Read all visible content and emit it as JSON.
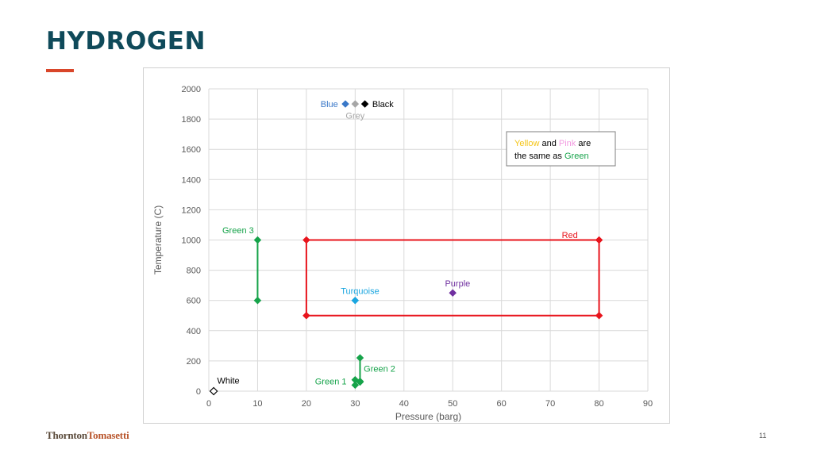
{
  "slide": {
    "title": "HYDROGEN",
    "accent_color": "#d9462a",
    "title_color": "#0f4a5a",
    "footer_logo_part1": "Thornton",
    "footer_logo_part2": "Tomasetti",
    "page_number": "11"
  },
  "chart_data": {
    "type": "scatter",
    "title": "",
    "xlabel": "Pressure (barg)",
    "ylabel": "Temperature (C)",
    "xlim": [
      0,
      90
    ],
    "ylim": [
      0,
      2000
    ],
    "xticks": [
      0,
      10,
      20,
      30,
      40,
      50,
      60,
      70,
      80,
      90
    ],
    "yticks": [
      0,
      200,
      400,
      600,
      800,
      1000,
      1200,
      1400,
      1600,
      1800,
      2000
    ],
    "grid": true,
    "series": [
      {
        "name": "Blue",
        "color": "#3a78c8",
        "marker": "diamond-filled",
        "points": [
          [
            28,
            1900
          ]
        ]
      },
      {
        "name": "Grey",
        "color": "#a6a6a6",
        "marker": "diamond-filled",
        "points": [
          [
            30,
            1900
          ]
        ]
      },
      {
        "name": "Black",
        "color": "#000000",
        "marker": "diamond-filled",
        "points": [
          [
            32,
            1900
          ]
        ]
      },
      {
        "name": "Green 3",
        "color": "#16a34a",
        "marker": "diamond-filled",
        "points": [
          [
            10,
            1000
          ],
          [
            10,
            600
          ]
        ],
        "line": true
      },
      {
        "name": "Red",
        "color": "#e8141c",
        "marker": "diamond-filled",
        "points": [
          [
            20,
            1000
          ],
          [
            80,
            1000
          ],
          [
            80,
            500
          ],
          [
            20,
            500
          ],
          [
            20,
            1000
          ]
        ],
        "line": true
      },
      {
        "name": "Turquoise",
        "color": "#1aa6e0",
        "marker": "diamond-filled",
        "points": [
          [
            30,
            600
          ]
        ]
      },
      {
        "name": "Purple",
        "color": "#7030a0",
        "marker": "diamond-filled",
        "points": [
          [
            50,
            650
          ]
        ]
      },
      {
        "name": "Green 2",
        "color": "#16a34a",
        "marker": "diamond-filled",
        "points": [
          [
            31,
            220
          ],
          [
            31,
            60
          ]
        ],
        "line": true
      },
      {
        "name": "Green 1",
        "color": "#16a34a",
        "marker": "diamond-filled",
        "points": [
          [
            30,
            75
          ],
          [
            30,
            40
          ],
          [
            31,
            65
          ]
        ]
      },
      {
        "name": "White",
        "color": "#000000",
        "marker": "diamond-open",
        "points": [
          [
            1,
            0
          ]
        ]
      }
    ],
    "annotations": [
      {
        "text": "Blue",
        "color": "#3a78c8",
        "x": 26.5,
        "y": 1900,
        "anchor": "end"
      },
      {
        "text": "Black",
        "color": "#000000",
        "x": 33.5,
        "y": 1900,
        "anchor": "start"
      },
      {
        "text": "Grey",
        "color": "#a6a6a6",
        "x": 30,
        "y": 1825,
        "anchor": "middle"
      },
      {
        "text": "Green 3",
        "color": "#16a34a",
        "x": 6,
        "y": 1065,
        "anchor": "middle"
      },
      {
        "text": "Red",
        "color": "#e8141c",
        "x": 74,
        "y": 1035,
        "anchor": "middle"
      },
      {
        "text": "Turquoise",
        "color": "#1aa6e0",
        "x": 31,
        "y": 665,
        "anchor": "middle"
      },
      {
        "text": "Purple",
        "color": "#7030a0",
        "x": 51,
        "y": 715,
        "anchor": "middle"
      },
      {
        "text": "Green 2",
        "color": "#16a34a",
        "x": 35,
        "y": 150,
        "anchor": "middle"
      },
      {
        "text": "Green 1",
        "color": "#16a34a",
        "x": 25,
        "y": 65,
        "anchor": "middle"
      },
      {
        "text": "White",
        "color": "#000000",
        "x": 4,
        "y": 70,
        "anchor": "middle"
      }
    ],
    "note": {
      "parts": [
        {
          "text": "Yellow",
          "color": "#f5c518"
        },
        {
          "text": " and ",
          "color": "#000000"
        },
        {
          "text": "Pink",
          "color": "#f29ae0"
        },
        {
          "text": " are",
          "color": "#000000"
        },
        {
          "text": "the same as ",
          "color": "#000000",
          "newline": true
        },
        {
          "text": "Green",
          "color": "#16a34a"
        }
      ]
    }
  }
}
